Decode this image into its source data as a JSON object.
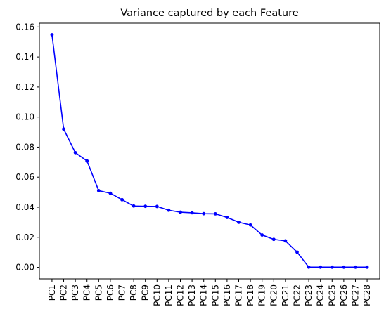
{
  "chart_data": {
    "type": "line",
    "title": "Variance captured by each Feature",
    "xlabel": "",
    "ylabel": "",
    "categories": [
      "PC1",
      "PC2",
      "PC3",
      "PC4",
      "PC5",
      "PC6",
      "PC7",
      "PC8",
      "PC9",
      "PC10",
      "PC11",
      "PC12",
      "PC13",
      "PC14",
      "PC15",
      "PC16",
      "PC17",
      "PC18",
      "PC19",
      "PC20",
      "PC21",
      "PC22",
      "PC23",
      "PC24",
      "PC25",
      "PC26",
      "PC27",
      "PC28"
    ],
    "series": [
      {
        "color": "#0000ff",
        "marker": "dot",
        "values": [
          0.1548,
          0.092,
          0.0763,
          0.0708,
          0.051,
          0.0493,
          0.045,
          0.0408,
          0.0406,
          0.0405,
          0.038,
          0.0367,
          0.0363,
          0.0357,
          0.0356,
          0.0332,
          0.03,
          0.0282,
          0.0215,
          0.0186,
          0.0176,
          0.0101,
          0.0001,
          0.0001,
          0.0001,
          0.0001,
          0.0001,
          0.0001
        ]
      }
    ],
    "ylim": [
      -0.0077,
      0.1625
    ],
    "yticks": [
      "0.00",
      "0.02",
      "0.04",
      "0.06",
      "0.08",
      "0.10",
      "0.12",
      "0.14",
      "0.16"
    ],
    "grid": false,
    "legend": "none"
  }
}
